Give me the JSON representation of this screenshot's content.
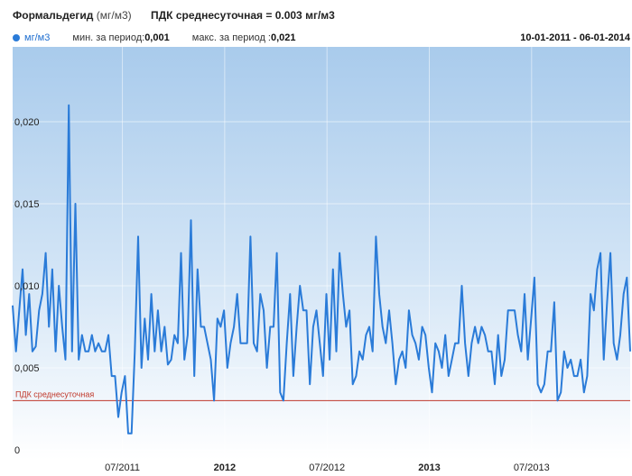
{
  "header": {
    "pollutant": "Формальдегид",
    "unit": "(мг/м3)",
    "pdk_label": "ПДК среднесуточная = 0.003 мг/м3"
  },
  "legend": {
    "series_name": "мг/м3",
    "series_color": "#2a7bd8",
    "min_label": "мин. за период:",
    "min_value": "0,001",
    "max_label": "макс. за период :",
    "max_value": "0,021",
    "date_range": "10-01-2011 - 06-01-2014"
  },
  "chart_data": {
    "type": "line",
    "title": "Формальдегид (мг/м3)",
    "xlabel": "",
    "ylabel": "",
    "ylim": [
      0,
      0.0225
    ],
    "y_ticks": [
      {
        "value": 0,
        "label": "0"
      },
      {
        "value": 0.005,
        "label": "0,005"
      },
      {
        "value": 0.01,
        "label": "0,010"
      },
      {
        "value": 0.015,
        "label": "0,015"
      },
      {
        "value": 0.02,
        "label": "0,020"
      }
    ],
    "x_ticks": [
      {
        "x": 29.5,
        "label": "07/2011",
        "bold": false
      },
      {
        "x": 57,
        "label": "2012",
        "bold": true
      },
      {
        "x": 84.5,
        "label": "07/2012",
        "bold": false
      },
      {
        "x": 112,
        "label": "2013",
        "bold": true
      },
      {
        "x": 139.5,
        "label": "07/2013",
        "bold": false
      }
    ],
    "xlim": [
      0,
      166
    ],
    "reference_line": {
      "value": 0.003,
      "label": "ПДК среднесуточная",
      "color": "#c0392b"
    },
    "grid": true,
    "series": [
      {
        "name": "мг/м3",
        "color": "#2a7bd8",
        "values": [
          0.0088,
          0.006,
          0.0085,
          0.011,
          0.007,
          0.0095,
          0.006,
          0.0063,
          0.0085,
          0.0095,
          0.012,
          0.0075,
          0.011,
          0.006,
          0.01,
          0.0075,
          0.0055,
          0.021,
          0.006,
          0.015,
          0.0055,
          0.007,
          0.006,
          0.006,
          0.007,
          0.006,
          0.0065,
          0.006,
          0.006,
          0.007,
          0.0045,
          0.0045,
          0.002,
          0.0035,
          0.0045,
          0.001,
          0.001,
          0.006,
          0.013,
          0.005,
          0.008,
          0.0055,
          0.0095,
          0.006,
          0.0085,
          0.006,
          0.0075,
          0.0052,
          0.0055,
          0.007,
          0.0065,
          0.012,
          0.0055,
          0.007,
          0.014,
          0.0045,
          0.011,
          0.0075,
          0.0075,
          0.0065,
          0.0055,
          0.003,
          0.008,
          0.0075,
          0.0085,
          0.005,
          0.0065,
          0.0075,
          0.0095,
          0.0065,
          0.0065,
          0.0065,
          0.013,
          0.0065,
          0.006,
          0.0095,
          0.0085,
          0.005,
          0.0075,
          0.0075,
          0.012,
          0.0035,
          0.003,
          0.0065,
          0.0095,
          0.0045,
          0.0075,
          0.01,
          0.0085,
          0.0085,
          0.004,
          0.0075,
          0.0085,
          0.0065,
          0.0045,
          0.0095,
          0.0055,
          0.011,
          0.006,
          0.012,
          0.0095,
          0.0075,
          0.0085,
          0.004,
          0.0045,
          0.006,
          0.0055,
          0.007,
          0.0075,
          0.006,
          0.013,
          0.0095,
          0.0075,
          0.0065,
          0.0085,
          0.0065,
          0.004,
          0.0055,
          0.006,
          0.005,
          0.0085,
          0.007,
          0.0065,
          0.0055,
          0.0075,
          0.007,
          0.005,
          0.0035,
          0.0065,
          0.006,
          0.005,
          0.007,
          0.0045,
          0.0055,
          0.0065,
          0.0065,
          0.01,
          0.0065,
          0.0045,
          0.0065,
          0.0075,
          0.0065,
          0.0075,
          0.007,
          0.006,
          0.006,
          0.004,
          0.007,
          0.0045,
          0.0055,
          0.0085,
          0.0085,
          0.0085,
          0.007,
          0.006,
          0.0095,
          0.0055,
          0.008,
          0.0105,
          0.004,
          0.0035,
          0.004,
          0.006,
          0.006,
          0.009,
          0.003,
          0.0035,
          0.006,
          0.005,
          0.0055,
          0.0045,
          0.0045,
          0.0055,
          0.0035,
          0.0045,
          0.0095,
          0.0085,
          0.011,
          0.012,
          0.0055,
          0.009,
          0.012,
          0.0065,
          0.0055,
          0.007,
          0.0095,
          0.0105,
          0.006
        ]
      }
    ]
  }
}
